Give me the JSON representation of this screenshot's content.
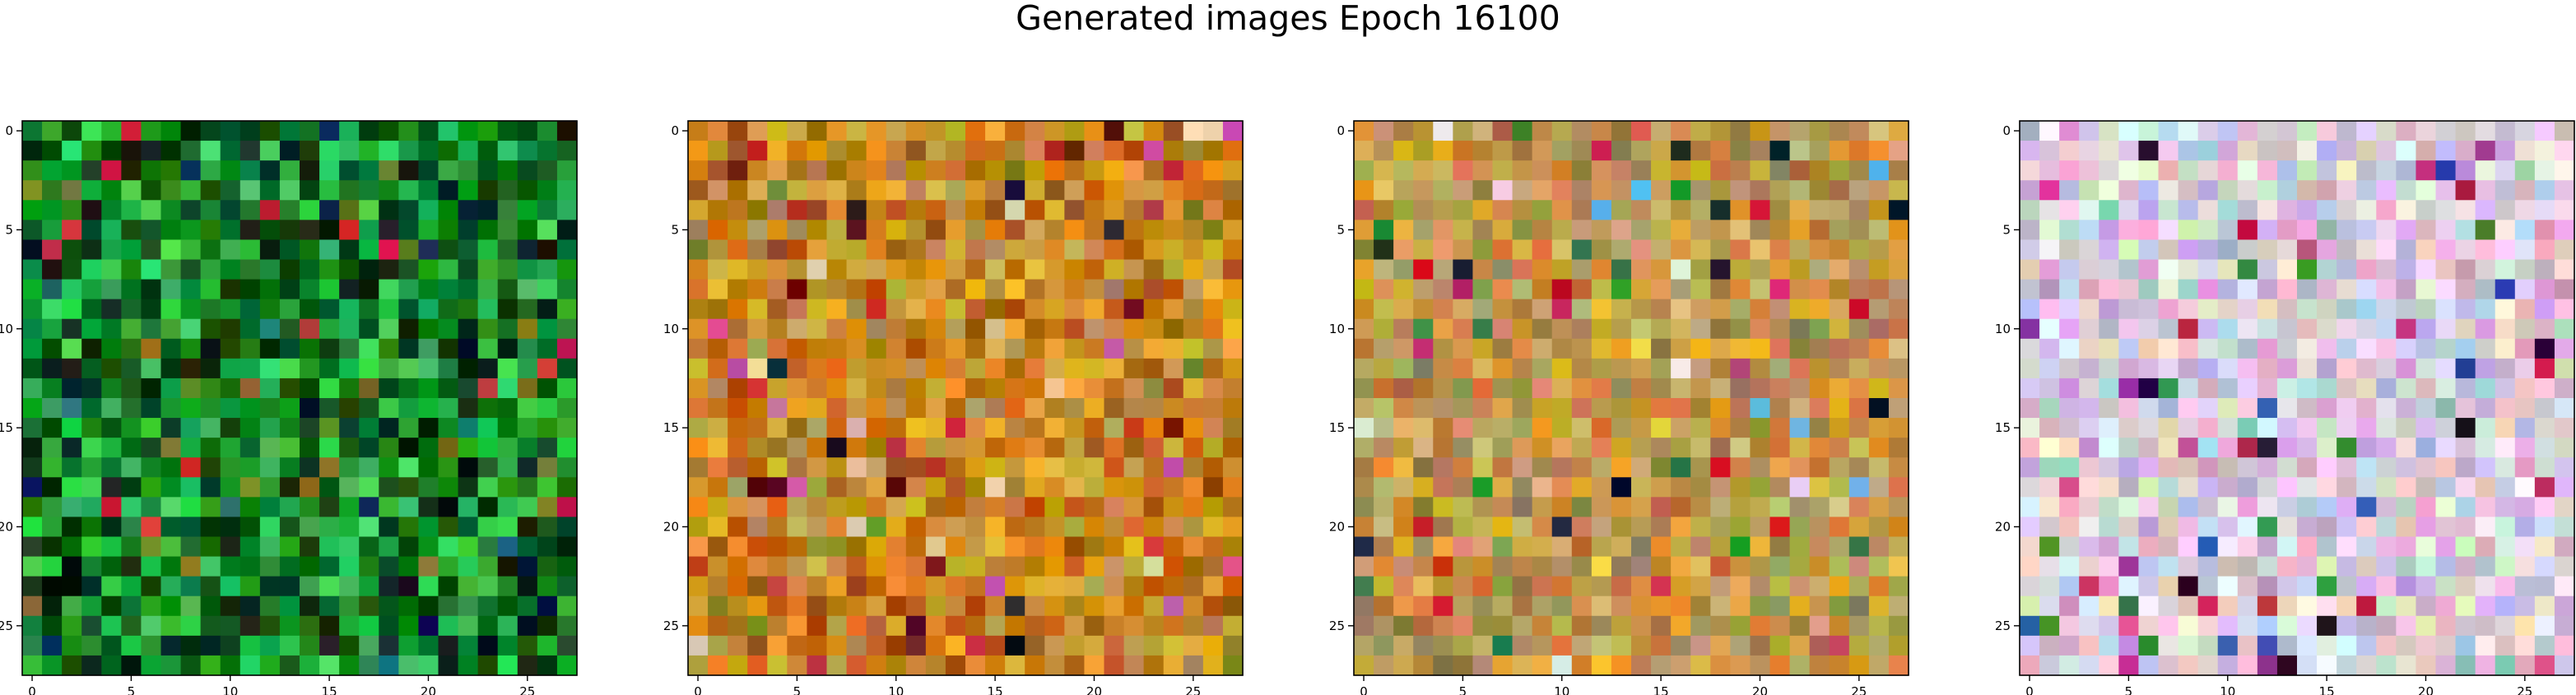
{
  "title": "Generated images Epoch 16100",
  "chart_data": [
    {
      "type": "heatmap",
      "name": "generated-image-1",
      "palette": [
        "#0b5a16",
        "#138a22",
        "#1e9a30",
        "#2bb847",
        "#0d3b14",
        "#06260c",
        "#3cc95a",
        "#0a6b1d"
      ],
      "accents": [
        "#0a1a4a",
        "#c9283a",
        "#8a7a2a",
        "#1b6e6e",
        "#6e8a2a"
      ],
      "xticks": [
        "0",
        "5",
        "10",
        "15",
        "20",
        "25"
      ],
      "yticks": [
        "0",
        "5",
        "10",
        "15",
        "20",
        "25"
      ],
      "xlim": [
        -0.5,
        27.5
      ],
      "ylim": [
        27.5,
        -0.5
      ],
      "grid_size": [
        28,
        28
      ]
    },
    {
      "type": "heatmap",
      "name": "generated-image-2",
      "palette": [
        "#c8821a",
        "#d89a22",
        "#b86a12",
        "#e0a830",
        "#a85a10",
        "#c8a040",
        "#d07a20",
        "#b89050"
      ],
      "accents": [
        "#6a1010",
        "#1a1a2a",
        "#d060a0",
        "#c83030",
        "#7a8a2a",
        "#e8c8a0"
      ],
      "xticks": [
        "0",
        "5",
        "10",
        "15",
        "20",
        "25"
      ],
      "yticks": [
        "0",
        "5",
        "10",
        "15",
        "20",
        "25"
      ],
      "xlim": [
        -0.5,
        27.5
      ],
      "ylim": [
        27.5,
        -0.5
      ],
      "grid_size": [
        28,
        28
      ]
    },
    {
      "type": "heatmap",
      "name": "generated-image-3",
      "palette": [
        "#c89040",
        "#b8a060",
        "#d8a030",
        "#a89050",
        "#c87840",
        "#d0b070",
        "#988848",
        "#c8a060"
      ],
      "accents": [
        "#c83060",
        "#101830",
        "#60b0e0",
        "#e0e0e0",
        "#2a8a3a",
        "#c82020",
        "#e8d040"
      ],
      "xticks": [
        "0",
        "5",
        "10",
        "15",
        "20",
        "25"
      ],
      "yticks": [
        "0",
        "5",
        "10",
        "15",
        "20",
        "25"
      ],
      "xlim": [
        -0.5,
        27.5
      ],
      "ylim": [
        27.5,
        -0.5
      ],
      "grid_size": [
        28,
        28
      ]
    },
    {
      "type": "heatmap",
      "name": "generated-image-4",
      "palette": [
        "#e8d8e8",
        "#d8b8d8",
        "#c8c8e0",
        "#e0e0c8",
        "#f0e8f0",
        "#d0a8c8",
        "#b8c8d8",
        "#e8c0d8"
      ],
      "accents": [
        "#2a1030",
        "#8a30a0",
        "#d04090",
        "#3050a0",
        "#3a8a3a",
        "#c02050",
        "#8acab0"
      ],
      "xticks": [
        "0",
        "5",
        "10",
        "15",
        "20",
        "25"
      ],
      "yticks": [
        "0",
        "5",
        "10",
        "15",
        "20",
        "25"
      ],
      "xlim": [
        -0.5,
        27.5
      ],
      "ylim": [
        27.5,
        -0.5
      ],
      "grid_size": [
        28,
        28
      ]
    }
  ]
}
